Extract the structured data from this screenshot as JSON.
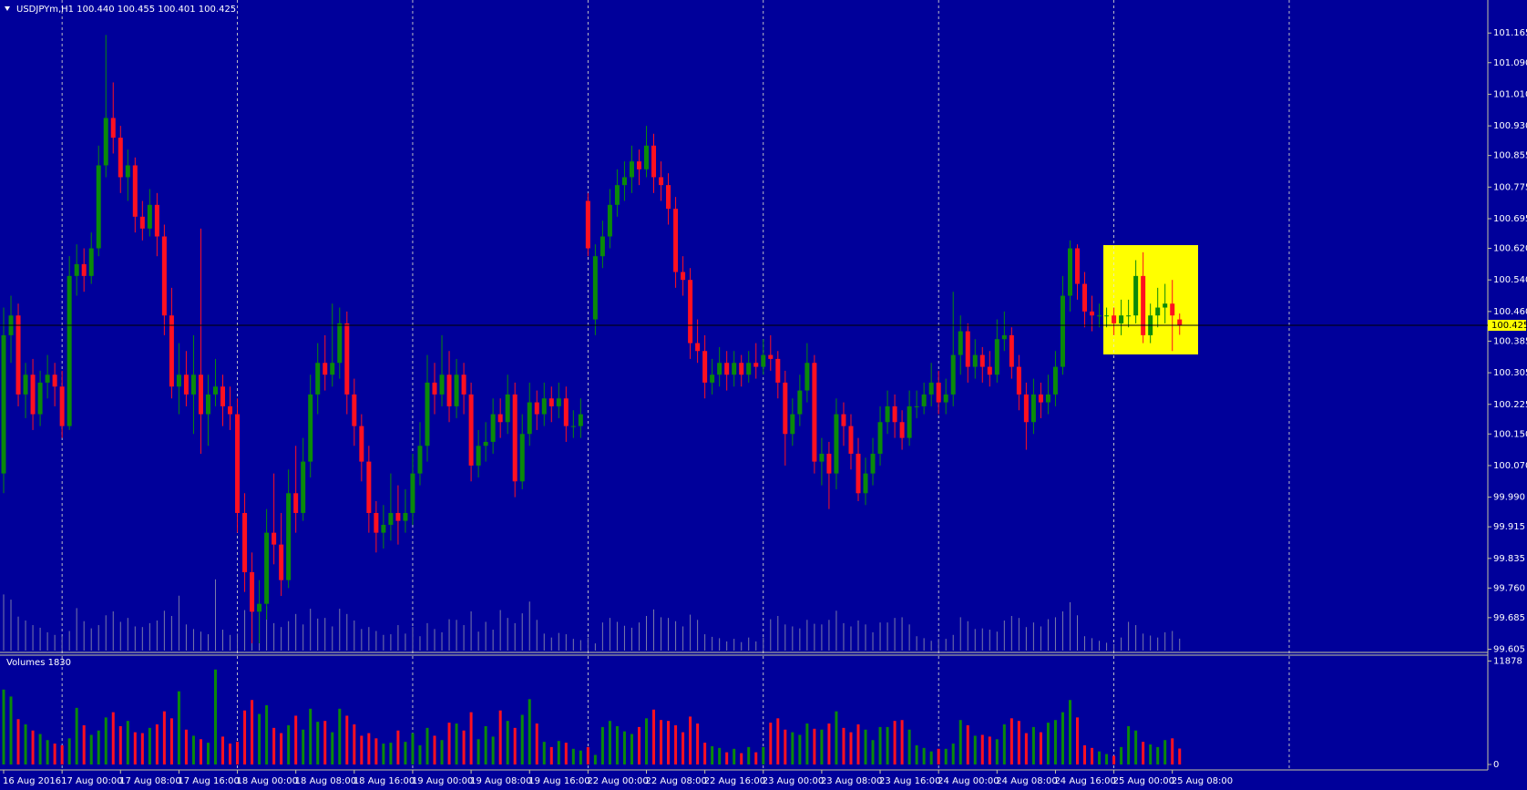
{
  "chart_data": {
    "type": "candlestick",
    "title": "USDJPYm,H1 100.440 100.455 100.401 100.425",
    "volume_title": "Volumes 1830",
    "categories": [
      "16 Aug 2016",
      null,
      null,
      null,
      null,
      null,
      null,
      null,
      "17 Aug 00:00",
      null,
      null,
      null,
      null,
      null,
      null,
      null,
      "17 Aug 08:00",
      null,
      null,
      null,
      null,
      null,
      null,
      null,
      "17 Aug 16:00",
      null,
      null,
      null,
      null,
      null,
      null,
      null,
      "18 Aug 00:00",
      null,
      null,
      null,
      null,
      null,
      null,
      null,
      "18 Aug 08:00",
      null,
      null,
      null,
      null,
      null,
      null,
      null,
      "18 Aug 16:00",
      null,
      null,
      null,
      null,
      null,
      null,
      null,
      "19 Aug 00:00",
      null,
      null,
      null,
      null,
      null,
      null,
      null,
      "19 Aug 08:00",
      null,
      null,
      null,
      null,
      null,
      null,
      null,
      "19 Aug 16:00",
      null,
      null,
      null,
      null,
      null,
      null,
      null,
      "22 Aug 00:00",
      null,
      null,
      null,
      null,
      null,
      null,
      null,
      "22 Aug 08:00",
      null,
      null,
      null,
      null,
      null,
      null,
      null,
      "22 Aug 16:00",
      null,
      null,
      null,
      null,
      null,
      null,
      null,
      "23 Aug 00:00",
      null,
      null,
      null,
      null,
      null,
      null,
      null,
      "23 Aug 08:00",
      null,
      null,
      null,
      null,
      null,
      null,
      null,
      "23 Aug 16:00",
      null,
      null,
      null,
      null,
      null,
      null,
      null,
      "24 Aug 00:00",
      null,
      null,
      null,
      null,
      null,
      null,
      null,
      "24 Aug 08:00",
      null,
      null,
      null,
      null,
      null,
      null,
      null,
      "24 Aug 16:00",
      null,
      null,
      null,
      null,
      null,
      null,
      null,
      "25 Aug 00:00",
      null,
      null,
      null,
      null,
      null,
      null,
      null,
      "25 Aug 08:00",
      null
    ],
    "ohlc": [
      [
        100.05,
        100.47,
        100.0,
        100.4
      ],
      [
        100.4,
        100.5,
        100.33,
        100.45
      ],
      [
        100.45,
        100.48,
        100.22,
        100.25
      ],
      [
        100.25,
        100.33,
        100.19,
        100.3
      ],
      [
        100.3,
        100.34,
        100.16,
        100.2
      ],
      [
        100.2,
        100.31,
        100.17,
        100.28
      ],
      [
        100.28,
        100.35,
        100.24,
        100.3
      ],
      [
        100.3,
        100.33,
        100.22,
        100.27
      ],
      [
        100.27,
        100.31,
        100.14,
        100.17
      ],
      [
        100.17,
        100.6,
        100.16,
        100.55
      ],
      [
        100.55,
        100.63,
        100.5,
        100.58
      ],
      [
        100.58,
        100.62,
        100.51,
        100.55
      ],
      [
        100.55,
        100.66,
        100.53,
        100.62
      ],
      [
        100.62,
        100.88,
        100.6,
        100.83
      ],
      [
        100.83,
        101.16,
        100.8,
        100.95
      ],
      [
        100.95,
        101.04,
        100.86,
        100.9
      ],
      [
        100.9,
        100.93,
        100.76,
        100.8
      ],
      [
        100.8,
        100.87,
        100.74,
        100.83
      ],
      [
        100.83,
        100.85,
        100.66,
        100.7
      ],
      [
        100.7,
        100.74,
        100.64,
        100.67
      ],
      [
        100.67,
        100.77,
        100.65,
        100.73
      ],
      [
        100.73,
        100.76,
        100.6,
        100.65
      ],
      [
        100.65,
        100.68,
        100.4,
        100.45
      ],
      [
        100.45,
        100.52,
        100.24,
        100.27
      ],
      [
        100.27,
        100.38,
        100.2,
        100.3
      ],
      [
        100.3,
        100.36,
        100.22,
        100.25
      ],
      [
        100.25,
        100.4,
        100.15,
        100.3
      ],
      [
        100.3,
        100.67,
        100.1,
        100.2
      ],
      [
        100.2,
        100.3,
        100.12,
        100.25
      ],
      [
        100.25,
        100.34,
        100.22,
        100.27
      ],
      [
        100.27,
        100.3,
        100.17,
        100.22
      ],
      [
        100.22,
        100.27,
        100.16,
        100.2
      ],
      [
        100.2,
        100.24,
        99.9,
        99.95
      ],
      [
        99.95,
        100.0,
        99.75,
        99.8
      ],
      [
        99.8,
        99.85,
        99.62,
        99.7
      ],
      [
        99.7,
        99.78,
        99.62,
        99.72
      ],
      [
        99.72,
        99.96,
        99.68,
        99.9
      ],
      [
        99.9,
        100.05,
        99.82,
        99.87
      ],
      [
        99.87,
        99.95,
        99.74,
        99.78
      ],
      [
        99.78,
        100.06,
        99.76,
        100.0
      ],
      [
        100.0,
        100.12,
        99.9,
        99.95
      ],
      [
        99.95,
        100.14,
        99.93,
        100.08
      ],
      [
        100.08,
        100.3,
        100.04,
        100.25
      ],
      [
        100.25,
        100.38,
        100.2,
        100.33
      ],
      [
        100.33,
        100.4,
        100.26,
        100.3
      ],
      [
        100.3,
        100.48,
        100.27,
        100.33
      ],
      [
        100.33,
        100.47,
        100.29,
        100.43
      ],
      [
        100.43,
        100.46,
        100.2,
        100.25
      ],
      [
        100.25,
        100.29,
        100.12,
        100.17
      ],
      [
        100.17,
        100.2,
        100.03,
        100.08
      ],
      [
        100.08,
        100.12,
        99.9,
        99.95
      ],
      [
        99.95,
        99.98,
        99.85,
        99.9
      ],
      [
        99.9,
        99.97,
        99.86,
        99.92
      ],
      [
        99.92,
        100.05,
        99.88,
        99.95
      ],
      [
        99.95,
        100.02,
        99.87,
        99.93
      ],
      [
        99.93,
        100.01,
        99.9,
        99.95
      ],
      [
        99.95,
        100.1,
        99.92,
        100.05
      ],
      [
        100.05,
        100.18,
        100.02,
        100.12
      ],
      [
        100.12,
        100.35,
        100.08,
        100.28
      ],
      [
        100.28,
        100.33,
        100.2,
        100.25
      ],
      [
        100.25,
        100.4,
        100.22,
        100.3
      ],
      [
        100.3,
        100.36,
        100.18,
        100.22
      ],
      [
        100.22,
        100.34,
        100.19,
        100.3
      ],
      [
        100.3,
        100.33,
        100.2,
        100.25
      ],
      [
        100.25,
        100.28,
        100.03,
        100.07
      ],
      [
        100.07,
        100.16,
        100.04,
        100.12
      ],
      [
        100.12,
        100.18,
        100.08,
        100.13
      ],
      [
        100.13,
        100.24,
        100.1,
        100.2
      ],
      [
        100.2,
        100.24,
        100.14,
        100.18
      ],
      [
        100.18,
        100.3,
        100.15,
        100.25
      ],
      [
        100.25,
        100.28,
        99.99,
        100.03
      ],
      [
        100.03,
        100.2,
        100.01,
        100.15
      ],
      [
        100.15,
        100.28,
        100.12,
        100.23
      ],
      [
        100.23,
        100.26,
        100.16,
        100.2
      ],
      [
        100.2,
        100.28,
        100.17,
        100.24
      ],
      [
        100.24,
        100.27,
        100.18,
        100.22
      ],
      [
        100.22,
        100.28,
        100.19,
        100.24
      ],
      [
        100.24,
        100.27,
        100.13,
        100.17
      ],
      [
        100.17,
        100.21,
        100.14,
        100.17
      ],
      [
        100.17,
        100.24,
        100.14,
        100.2
      ],
      [
        100.74,
        100.76,
        100.6,
        100.62
      ],
      [
        100.44,
        100.63,
        100.4,
        100.6
      ],
      [
        100.6,
        100.69,
        100.57,
        100.65
      ],
      [
        100.65,
        100.77,
        100.62,
        100.73
      ],
      [
        100.73,
        100.82,
        100.7,
        100.78
      ],
      [
        100.78,
        100.84,
        100.74,
        100.8
      ],
      [
        100.8,
        100.88,
        100.76,
        100.84
      ],
      [
        100.84,
        100.87,
        100.78,
        100.82
      ],
      [
        100.82,
        100.93,
        100.8,
        100.88
      ],
      [
        100.88,
        100.91,
        100.76,
        100.8
      ],
      [
        100.8,
        100.84,
        100.74,
        100.78
      ],
      [
        100.78,
        100.81,
        100.68,
        100.72
      ],
      [
        100.72,
        100.75,
        100.52,
        100.56
      ],
      [
        100.56,
        100.6,
        100.5,
        100.54
      ],
      [
        100.54,
        100.57,
        100.34,
        100.38
      ],
      [
        100.38,
        100.44,
        100.33,
        100.36
      ],
      [
        100.36,
        100.4,
        100.24,
        100.28
      ],
      [
        100.28,
        100.34,
        100.25,
        100.3
      ],
      [
        100.3,
        100.37,
        100.27,
        100.33
      ],
      [
        100.33,
        100.36,
        100.26,
        100.3
      ],
      [
        100.3,
        100.36,
        100.27,
        100.33
      ],
      [
        100.33,
        100.35,
        100.27,
        100.3
      ],
      [
        100.3,
        100.36,
        100.28,
        100.33
      ],
      [
        100.33,
        100.38,
        100.29,
        100.32
      ],
      [
        100.32,
        100.39,
        100.3,
        100.35
      ],
      [
        100.35,
        100.4,
        100.31,
        100.34
      ],
      [
        100.34,
        100.36,
        100.24,
        100.28
      ],
      [
        100.28,
        100.31,
        100.07,
        100.15
      ],
      [
        100.15,
        100.24,
        100.12,
        100.2
      ],
      [
        100.2,
        100.3,
        100.17,
        100.26
      ],
      [
        100.26,
        100.38,
        100.23,
        100.33
      ],
      [
        100.33,
        100.35,
        100.05,
        100.08
      ],
      [
        100.08,
        100.14,
        100.02,
        100.1
      ],
      [
        100.1,
        100.13,
        99.96,
        100.05
      ],
      [
        100.05,
        100.24,
        100.01,
        100.2
      ],
      [
        100.2,
        100.23,
        100.12,
        100.17
      ],
      [
        100.17,
        100.2,
        100.06,
        100.1
      ],
      [
        100.1,
        100.14,
        99.98,
        100.0
      ],
      [
        100.0,
        100.09,
        99.97,
        100.05
      ],
      [
        100.05,
        100.14,
        100.02,
        100.1
      ],
      [
        100.1,
        100.22,
        100.07,
        100.18
      ],
      [
        100.18,
        100.26,
        100.15,
        100.22
      ],
      [
        100.22,
        100.25,
        100.14,
        100.18
      ],
      [
        100.18,
        100.21,
        100.11,
        100.14
      ],
      [
        100.14,
        100.26,
        100.12,
        100.22
      ],
      [
        100.22,
        100.26,
        100.19,
        100.22
      ],
      [
        100.22,
        100.28,
        100.2,
        100.25
      ],
      [
        100.25,
        100.33,
        100.22,
        100.28
      ],
      [
        100.28,
        100.31,
        100.2,
        100.23
      ],
      [
        100.23,
        100.29,
        100.2,
        100.25
      ],
      [
        100.25,
        100.51,
        100.22,
        100.35
      ],
      [
        100.35,
        100.45,
        100.3,
        100.41
      ],
      [
        100.41,
        100.43,
        100.28,
        100.32
      ],
      [
        100.32,
        100.39,
        100.29,
        100.35
      ],
      [
        100.35,
        100.37,
        100.28,
        100.32
      ],
      [
        100.32,
        100.36,
        100.27,
        100.3
      ],
      [
        100.3,
        100.44,
        100.28,
        100.39
      ],
      [
        100.39,
        100.46,
        100.36,
        100.4
      ],
      [
        100.4,
        100.42,
        100.29,
        100.32
      ],
      [
        100.32,
        100.35,
        100.21,
        100.25
      ],
      [
        100.25,
        100.28,
        100.11,
        100.18
      ],
      [
        100.18,
        100.29,
        100.15,
        100.25
      ],
      [
        100.25,
        100.28,
        100.19,
        100.23
      ],
      [
        100.23,
        100.3,
        100.2,
        100.25
      ],
      [
        100.25,
        100.36,
        100.22,
        100.32
      ],
      [
        100.32,
        100.55,
        100.3,
        100.5
      ],
      [
        100.5,
        100.64,
        100.46,
        100.62
      ],
      [
        100.62,
        100.63,
        100.49,
        100.53
      ],
      [
        100.53,
        100.56,
        100.42,
        100.46
      ],
      [
        100.46,
        100.5,
        100.41,
        100.45
      ],
      [
        100.45,
        100.48,
        100.42,
        100.45
      ],
      [
        100.45,
        100.47,
        100.42,
        100.45
      ],
      [
        100.45,
        100.47,
        100.4,
        100.43
      ],
      [
        100.43,
        100.49,
        100.4,
        100.45
      ],
      [
        100.45,
        100.49,
        100.42,
        100.45
      ],
      [
        100.45,
        100.59,
        100.43,
        100.55
      ],
      [
        100.55,
        100.61,
        100.38,
        100.4
      ],
      [
        100.4,
        100.48,
        100.38,
        100.45
      ],
      [
        100.45,
        100.52,
        100.42,
        100.47
      ],
      [
        100.47,
        100.53,
        100.43,
        100.48
      ],
      [
        100.48,
        100.54,
        100.36,
        100.45
      ],
      [
        100.44,
        100.455,
        100.401,
        100.425
      ]
    ],
    "volumes": [
      8600,
      7800,
      5200,
      4600,
      3900,
      3500,
      2800,
      2400,
      2200,
      3000,
      6500,
      4500,
      3400,
      3900,
      5400,
      6000,
      4400,
      5000,
      3700,
      3600,
      4200,
      4600,
      6100,
      5300,
      8400,
      4000,
      3300,
      2900,
      2500,
      10900,
      3200,
      2400,
      2600,
      6200,
      7400,
      5800,
      6800,
      4200,
      3600,
      4500,
      5600,
      4000,
      6400,
      4900,
      5000,
      3700,
      6400,
      5600,
      4600,
      3300,
      3600,
      3000,
      2400,
      2500,
      3900,
      2600,
      3600,
      2200,
      4200,
      3300,
      2800,
      4800,
      4700,
      3900,
      6000,
      2900,
      4400,
      3200,
      6200,
      5000,
      4200,
      5700,
      7500,
      4700,
      2600,
      2000,
      2700,
      2500,
      1800,
      1600,
      2000,
      1100,
      4300,
      5000,
      4400,
      3800,
      3500,
      4300,
      5300,
      6300,
      5100,
      5000,
      4500,
      3700,
      5500,
      4700,
      2500,
      2100,
      1900,
      1400,
      1800,
      1300,
      2000,
      1400,
      2000,
      4800,
      5300,
      4000,
      3700,
      3400,
      4700,
      4100,
      4000,
      4700,
      6100,
      4200,
      3700,
      4600,
      4000,
      2800,
      4300,
      4300,
      5000,
      5100,
      4000,
      2200,
      1900,
      1500,
      1800,
      1800,
      2400,
      5100,
      4500,
      3300,
      3400,
      3200,
      2900,
      4600,
      5300,
      5000,
      3600,
      4300,
      3700,
      4800,
      5100,
      6000,
      7400,
      5400,
      2200,
      1900,
      1500,
      1200,
      1000,
      2000,
      4400,
      3900,
      2600,
      2300,
      2000,
      2800,
      3000,
      1830
    ],
    "up_color": "#0a8a0a",
    "down_color": "#ff1020",
    "volume_overlay_color": "#7a7aa8",
    "ylim": [
      99.597,
      101.244
    ],
    "yticks": [
      {
        "value": 101.165,
        "label": "101.165"
      },
      {
        "value": 101.09,
        "label": "101.090"
      },
      {
        "value": 101.01,
        "label": "101.010"
      },
      {
        "value": 100.93,
        "label": "100.930"
      },
      {
        "value": 100.855,
        "label": "100.855"
      },
      {
        "value": 100.775,
        "label": "100.775"
      },
      {
        "value": 100.695,
        "label": "100.695"
      },
      {
        "value": 100.62,
        "label": "100.620"
      },
      {
        "value": 100.54,
        "label": "100.540"
      },
      {
        "value": 100.46,
        "label": "100.460"
      },
      {
        "value": 100.385,
        "label": "100.385"
      },
      {
        "value": 100.305,
        "label": "100.305"
      },
      {
        "value": 100.225,
        "label": "100.225"
      },
      {
        "value": 100.15,
        "label": "100.150"
      },
      {
        "value": 100.07,
        "label": "100.070"
      },
      {
        "value": 99.99,
        "label": "99.990"
      },
      {
        "value": 99.915,
        "label": "99.915"
      },
      {
        "value": 99.835,
        "label": "99.835"
      },
      {
        "value": 99.76,
        "label": "99.760"
      },
      {
        "value": 99.685,
        "label": "99.685"
      },
      {
        "value": 99.605,
        "label": "99.605"
      }
    ],
    "current_price": 100.425,
    "y2lim": [
      0,
      12550
    ],
    "y2ticks": [
      11878,
      0
    ]
  }
}
